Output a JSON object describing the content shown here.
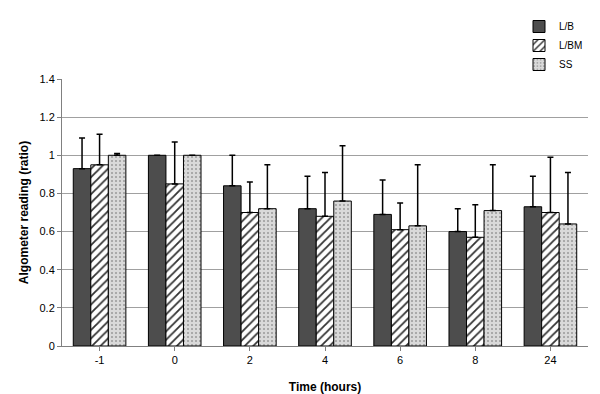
{
  "chart_data": {
    "type": "bar",
    "x_label": "Time (hours)",
    "y_label": "Algometer reading (ratio)",
    "categories": [
      "-1",
      "0",
      "2",
      "4",
      "6",
      "8",
      "24"
    ],
    "series": [
      {
        "name": "L/B",
        "color": "#4d4d4d",
        "marker": "solid",
        "values": [
          0.93,
          1.0,
          0.84,
          0.72,
          0.69,
          0.6,
          0.73
        ],
        "errors": [
          0.16,
          0.0,
          0.16,
          0.17,
          0.18,
          0.12,
          0.16
        ]
      },
      {
        "name": "L/BM",
        "color": "#333333",
        "marker": "hatch",
        "values": [
          0.95,
          0.85,
          0.7,
          0.68,
          0.61,
          0.57,
          0.7
        ],
        "errors": [
          0.16,
          0.22,
          0.16,
          0.23,
          0.14,
          0.17,
          0.29
        ]
      },
      {
        "name": "SS",
        "color": "#d9d9d9",
        "marker": "dots",
        "values": [
          1.0,
          1.0,
          0.72,
          0.76,
          0.63,
          0.71,
          0.64
        ],
        "errors": [
          0.01,
          0.0,
          0.23,
          0.29,
          0.32,
          0.24,
          0.27
        ]
      }
    ],
    "ylim": [
      0,
      1.4
    ],
    "yticks": [
      0,
      0.2,
      0.4,
      0.6,
      0.8,
      1,
      1.2,
      1.4
    ],
    "grid": true,
    "legend": "top right"
  }
}
